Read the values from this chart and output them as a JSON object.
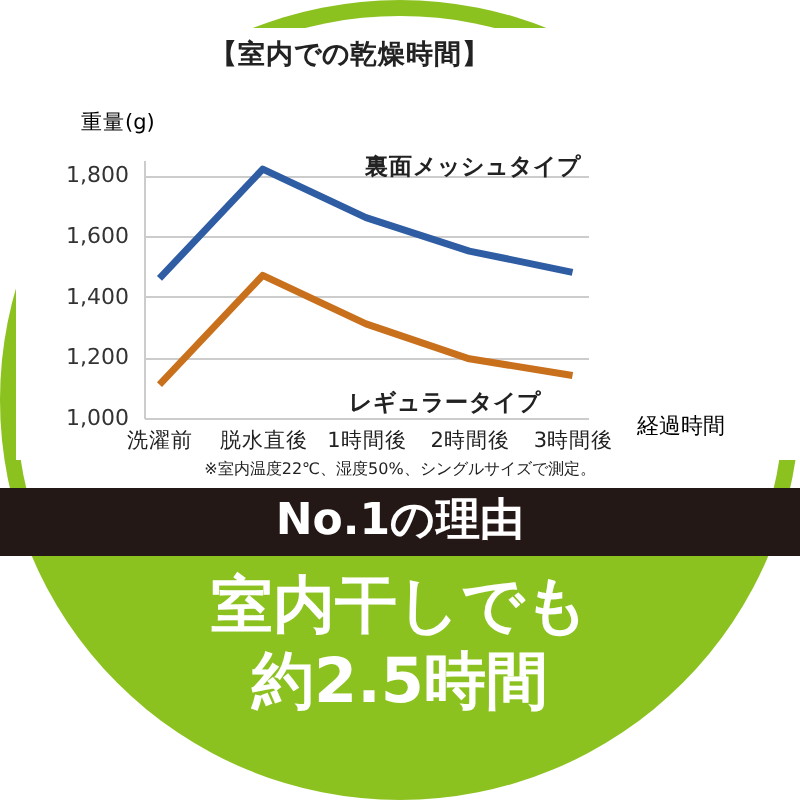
{
  "chart_data": {
    "type": "line",
    "title": "【室内での乾燥時間】",
    "ylabel": "重量(g)",
    "xlabel": "経過時間",
    "categories": [
      "洗濯前",
      "脱水直後",
      "1時間後",
      "2時間後",
      "3時間後"
    ],
    "series": [
      {
        "name": "裏面メッシュタイプ",
        "color": "#2f5da3",
        "values": [
          1460,
          1820,
          1660,
          1550,
          1480
        ]
      },
      {
        "name": "レギュラータイプ",
        "color": "#c9701c",
        "values": [
          1110,
          1470,
          1310,
          1195,
          1140
        ]
      }
    ],
    "ylim": [
      1000,
      1850
    ],
    "yticks": [
      {
        "value": 1000,
        "label": "1,000"
      },
      {
        "value": 1200,
        "label": "1,200"
      },
      {
        "value": 1400,
        "label": "1,400"
      },
      {
        "value": 1600,
        "label": "1,600"
      },
      {
        "value": 1800,
        "label": "1,800"
      }
    ],
    "grid": "y",
    "legend": false,
    "marker": "none",
    "line_style": "solid",
    "annotations": [
      "※室内温度22℃、湿度50%、シングルサイズで測定。",
      "No.1の理由",
      "室内干しでも約2.5時間"
    ]
  }
}
